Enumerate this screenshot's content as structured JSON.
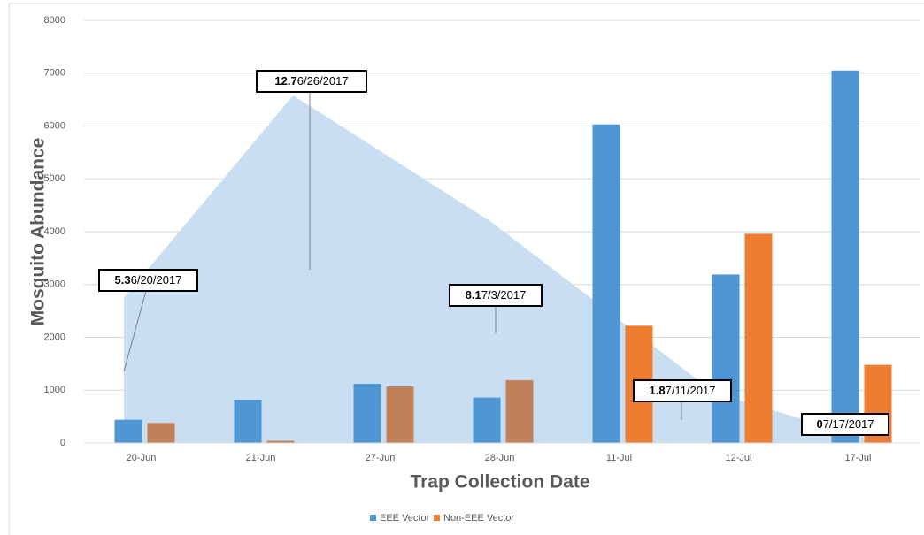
{
  "chart_data": {
    "type": "bar",
    "x_label": "Trap Collection Date",
    "y_label": "Mosquito Abundance",
    "categories": [
      "20-Jun",
      "21-Jun",
      "27-Jun",
      "28-Jun",
      "11-Jul",
      "12-Jul",
      "17-Jul"
    ],
    "series": [
      {
        "name": "EEE Vector",
        "color": "#4e97d4",
        "values": [
          440,
          820,
          1120,
          860,
          6030,
          3190,
          7050
        ]
      },
      {
        "name": "Non-EEE Vector",
        "color": "#ed7d31",
        "point_colors": [
          "#c0805a",
          "#c0805a",
          "#c0805a",
          "#c0805a",
          "#ed7d31",
          "#ed7d31",
          "#ed7d31"
        ],
        "values": [
          380,
          40,
          1070,
          1190,
          2220,
          3960,
          1480
        ]
      }
    ],
    "area": {
      "type": "area",
      "color": "#c9dff1",
      "axis": "y2",
      "x": [
        "6/20/2017",
        "6/26/2017",
        "7/3/2017",
        "7/11/2017",
        "7/17/2017"
      ],
      "values": [
        5.3,
        12.7,
        8.1,
        1.8,
        0
      ]
    },
    "ylim": [
      0,
      8000
    ],
    "yticks": [
      0,
      1000,
      2000,
      3000,
      4000,
      5000,
      6000,
      7000,
      8000
    ],
    "y2lim": [
      0,
      15.44
    ],
    "grid": true,
    "legend": "bottom"
  }
}
